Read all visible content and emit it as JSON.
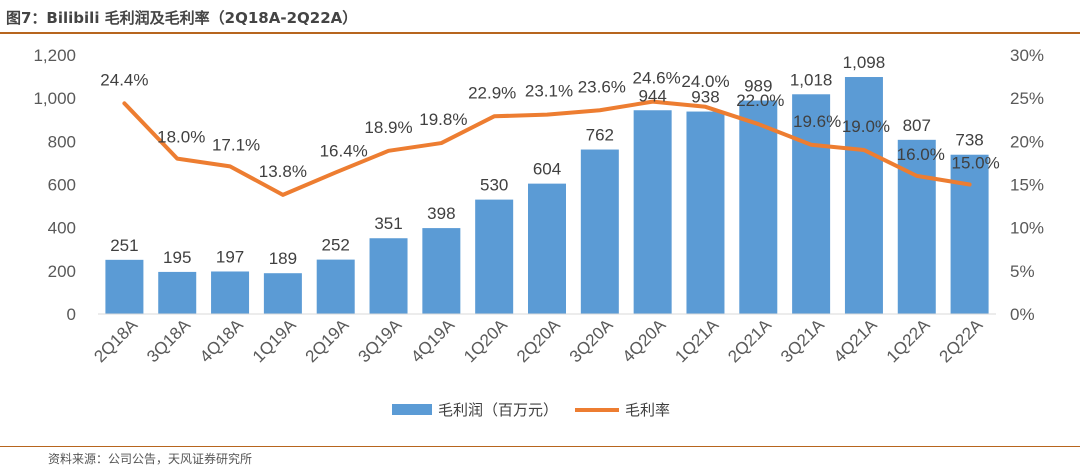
{
  "header": {
    "title": "图7：Bilibili 毛利润及毛利率（2Q18A-2Q22A）"
  },
  "footer": {
    "source": "资料来源：公司公告，天风证券研究所"
  },
  "colors": {
    "bar": "#5b9bd5",
    "line": "#ed7d31",
    "rule": "#b7651e"
  },
  "chart_data": {
    "type": "bar",
    "title": "Bilibili 毛利润及毛利率（2Q18A-2Q22A）",
    "categories": [
      "2Q18A",
      "3Q18A",
      "4Q18A",
      "1Q19A",
      "2Q19A",
      "3Q19A",
      "4Q19A",
      "1Q20A",
      "2Q20A",
      "3Q20A",
      "4Q20A",
      "1Q21A",
      "2Q21A",
      "3Q21A",
      "4Q21A",
      "1Q22A",
      "2Q22A"
    ],
    "series": [
      {
        "name": "毛利润（百万元）",
        "type": "bar",
        "axis": "left",
        "values": [
          251,
          195,
          197,
          189,
          252,
          351,
          398,
          530,
          604,
          762,
          944,
          938,
          989,
          1018,
          1098,
          807,
          738
        ],
        "labels": [
          "251",
          "195",
          "197",
          "189",
          "252",
          "351",
          "398",
          "530",
          "604",
          "762",
          "944",
          "938",
          "989",
          "1,018",
          "1,098",
          "807",
          "738"
        ]
      },
      {
        "name": "毛利率",
        "type": "line",
        "axis": "right",
        "values": [
          24.4,
          18.0,
          17.1,
          13.8,
          16.4,
          18.9,
          19.8,
          22.9,
          23.1,
          23.6,
          24.6,
          24.0,
          22.0,
          19.6,
          19.0,
          16.0,
          15.0
        ],
        "labels": [
          "24.4%",
          "18.0%",
          "17.1%",
          "13.8%",
          "16.4%",
          "18.9%",
          "19.8%",
          "22.9%",
          "23.1%",
          "23.6%",
          "24.6%",
          "24.0%",
          "22.0%",
          "19.6%",
          "19.0%",
          "16.0%",
          "15.0%"
        ]
      }
    ],
    "y_left": {
      "ylim": [
        0,
        1200
      ],
      "ticks": [
        "0",
        "200",
        "400",
        "600",
        "800",
        "1,000",
        "1,200"
      ]
    },
    "y_right": {
      "ylim": [
        0,
        30
      ],
      "ticks": [
        "0%",
        "5%",
        "10%",
        "15%",
        "20%",
        "25%",
        "30%"
      ]
    },
    "legend_position": "bottom-center"
  }
}
